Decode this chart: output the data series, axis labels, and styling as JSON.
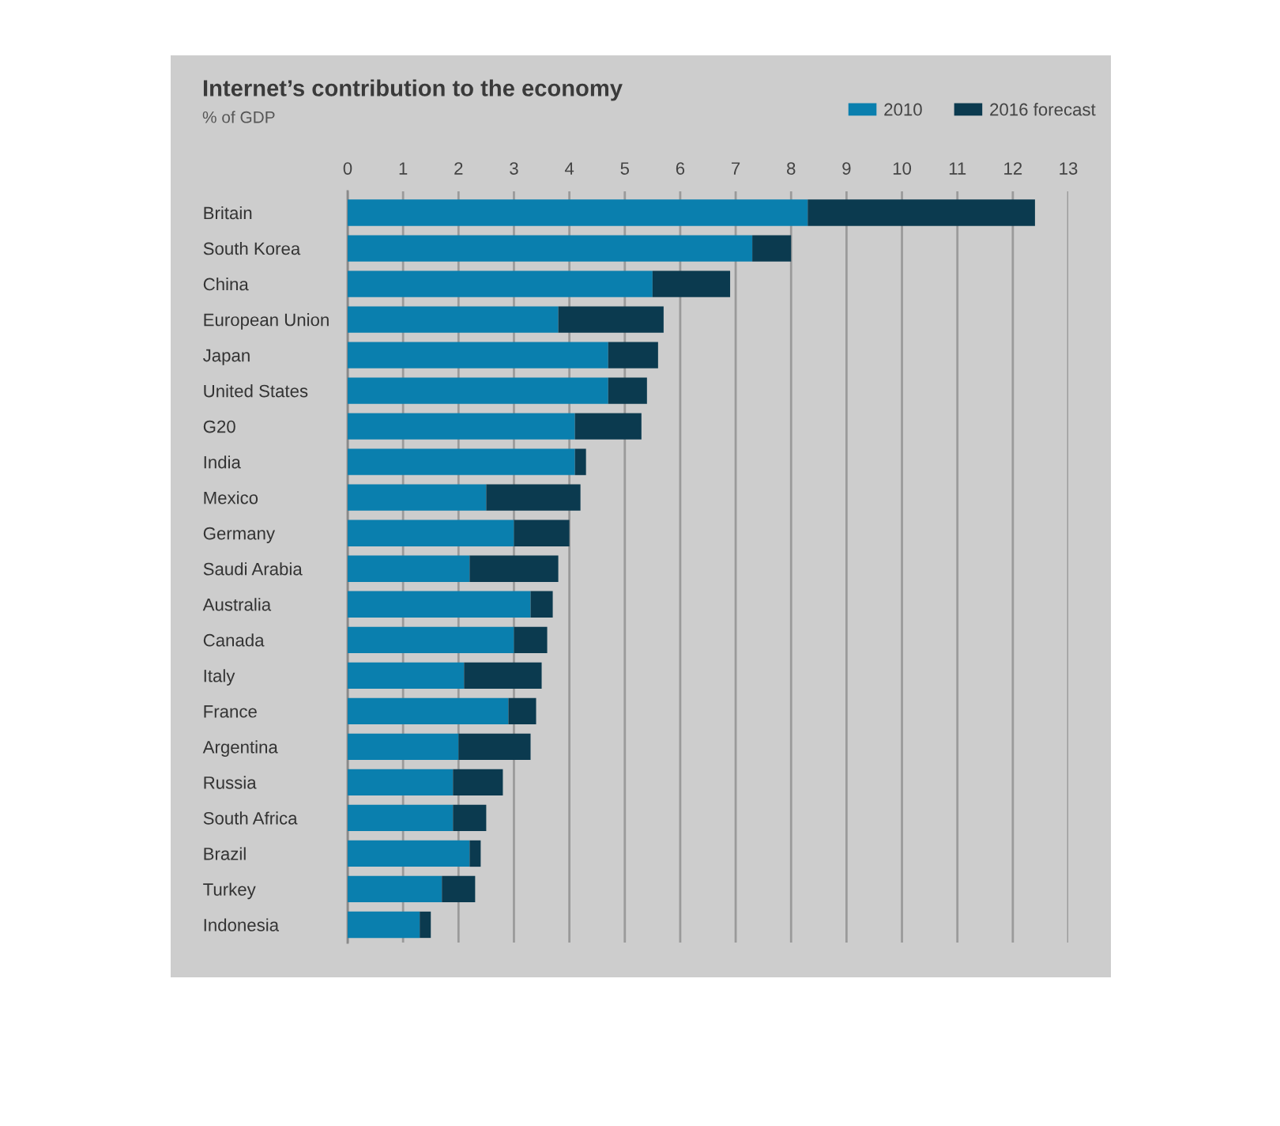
{
  "chart_data": {
    "type": "bar",
    "title": "Internet’s contribution to the economy",
    "subtitle": "% of GDP",
    "orientation": "horizontal",
    "stacked": true,
    "categories": [
      "Britain",
      "South Korea",
      "China",
      "European Union",
      "Japan",
      "United States",
      "G20",
      "India",
      "Mexico",
      "Germany",
      "Saudi Arabia",
      "Australia",
      "Canada",
      "Italy",
      "France",
      "Argentina",
      "Russia",
      "South Africa",
      "Brazil",
      "Turkey",
      "Indonesia"
    ],
    "series": [
      {
        "name": "2010",
        "color": "#0a7fae",
        "values": [
          8.3,
          7.3,
          5.5,
          3.8,
          4.7,
          4.7,
          4.1,
          4.1,
          2.5,
          3.0,
          2.2,
          3.3,
          3.0,
          2.1,
          2.9,
          2.0,
          1.9,
          1.9,
          2.2,
          1.7,
          1.3
        ]
      },
      {
        "name": "2016 forecast",
        "color": "#0b3a4f",
        "values": [
          4.1,
          0.7,
          1.4,
          1.9,
          0.9,
          0.7,
          1.2,
          0.2,
          1.7,
          1.0,
          1.6,
          0.4,
          0.6,
          1.4,
          0.5,
          1.3,
          0.9,
          0.6,
          0.2,
          0.6,
          0.2
        ]
      }
    ],
    "xlim": [
      0,
      13
    ],
    "xticks": [
      0,
      1,
      2,
      3,
      4,
      5,
      6,
      7,
      8,
      9,
      10,
      11,
      12,
      13
    ],
    "grid": "x",
    "legend": "top right"
  }
}
